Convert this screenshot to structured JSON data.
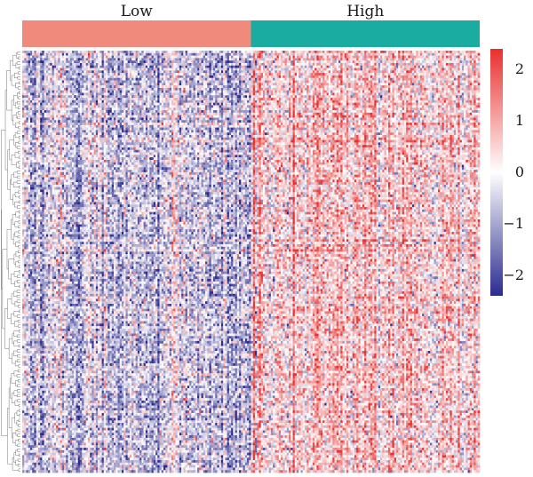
{
  "chart_data": {
    "type": "heatmap",
    "title": "",
    "xlabel": "",
    "ylabel": "",
    "groups": [
      {
        "name": "Low",
        "color": "#f08a7c",
        "tendency": -0.55
      },
      {
        "name": "High",
        "color": "#1aaba1",
        "tendency": 0.6
      }
    ],
    "n_rows": 170,
    "n_cols_per_group": 115,
    "color_scale": {
      "min": -2.4,
      "max": 2.4,
      "low_color": "#2b2b8f",
      "mid_color": "#ffffff",
      "high_color": "#e8302f",
      "ticks": [
        {
          "value": 2,
          "label": "2"
        },
        {
          "value": 1,
          "label": "1"
        },
        {
          "value": 0,
          "label": "0"
        },
        {
          "value": -1,
          "label": "−1"
        },
        {
          "value": -2,
          "label": "−2"
        }
      ]
    },
    "row_dendrogram": true,
    "legend_position": "right"
  }
}
